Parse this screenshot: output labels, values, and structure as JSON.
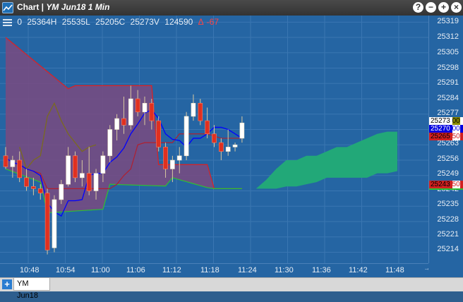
{
  "window": {
    "title": "Chart",
    "separator": " | ",
    "subtitle": "YM Jun18 1 Min",
    "buttons": [
      "?",
      "−",
      "+",
      "×"
    ]
  },
  "header": {
    "open": "0",
    "high": "25364H",
    "low": "25535L",
    "close": "25205C",
    "volume": "25273V",
    "extra": "124590",
    "change_marker": "Δ",
    "change": "-67"
  },
  "y_axis": {
    "labels": [
      "25319",
      "25312",
      "25305",
      "25298",
      "25291",
      "25284",
      "25277",
      "25270",
      "25263",
      "25256",
      "25249",
      "25242",
      "25235",
      "25228",
      "25221",
      "25214"
    ]
  },
  "x_axis": {
    "labels": [
      "10:48",
      "10:54",
      "11:00",
      "11:06",
      "11:12",
      "11:18",
      "11:24",
      "11:30",
      "11:36",
      "11:42",
      "11:48"
    ]
  },
  "price_tags": [
    {
      "text": "25273",
      "suffix": "00",
      "bg": "#ffffff",
      "fg": "#000000",
      "suffix_bg": "#8a8a00"
    },
    {
      "text": "25270",
      "suffix": "00",
      "bg": "#0000e0",
      "fg": "#ffffff",
      "suffix_bg": "#ffffff"
    },
    {
      "text": "25265",
      "suffix": "50",
      "bg": "#d02020",
      "fg": "#000000",
      "suffix_bg": "#ffffff"
    },
    {
      "text": "25243",
      "suffix": "50",
      "bg": "#d02020",
      "fg": "#000000",
      "suffix_bg": "#ffffff"
    }
  ],
  "bottom": {
    "add_button": "+",
    "tab_label": "YM Jun18"
  },
  "colors": {
    "plot_bg": "#2565a3",
    "cloud_bearish": "#7a4a80",
    "cloud_bullish": "#22a878",
    "tenkan": "#0000ff",
    "kijun": "#b02030",
    "chikou": "#7a6a20",
    "span_b": "#e02020",
    "span_a": "#30c030",
    "candle_up": "#ffffff",
    "candle_down": "#e03020"
  },
  "chart_data": {
    "type": "candlestick",
    "title": "YM Jun18 1 Min",
    "ylim": [
      25209,
      25322
    ],
    "candles": [
      {
        "o": 25258,
        "h": 25262,
        "l": 25252,
        "c": 25253
      },
      {
        "o": 25253,
        "h": 25258,
        "l": 25248,
        "c": 25256
      },
      {
        "o": 25256,
        "h": 25260,
        "l": 25246,
        "c": 25248
      },
      {
        "o": 25248,
        "h": 25252,
        "l": 25242,
        "c": 25244
      },
      {
        "o": 25244,
        "h": 25248,
        "l": 25240,
        "c": 25243
      },
      {
        "o": 25243,
        "h": 25245,
        "l": 25238,
        "c": 25241
      },
      {
        "o": 25241,
        "h": 25243,
        "l": 25213,
        "c": 25215
      },
      {
        "o": 25216,
        "h": 25240,
        "l": 25214,
        "c": 25238
      },
      {
        "o": 25238,
        "h": 25247,
        "l": 25236,
        "c": 25245
      },
      {
        "o": 25245,
        "h": 25262,
        "l": 25244,
        "c": 25258
      },
      {
        "o": 25258,
        "h": 25260,
        "l": 25246,
        "c": 25248
      },
      {
        "o": 25248,
        "h": 25256,
        "l": 25244,
        "c": 25250
      },
      {
        "o": 25250,
        "h": 25262,
        "l": 25240,
        "c": 25242
      },
      {
        "o": 25242,
        "h": 25252,
        "l": 25238,
        "c": 25250
      },
      {
        "o": 25250,
        "h": 25260,
        "l": 25246,
        "c": 25258
      },
      {
        "o": 25258,
        "h": 25272,
        "l": 25255,
        "c": 25270
      },
      {
        "o": 25270,
        "h": 25277,
        "l": 25265,
        "c": 25275
      },
      {
        "o": 25275,
        "h": 25285,
        "l": 25268,
        "c": 25272
      },
      {
        "o": 25272,
        "h": 25290,
        "l": 25270,
        "c": 25284
      },
      {
        "o": 25284,
        "h": 25288,
        "l": 25276,
        "c": 25278
      },
      {
        "o": 25278,
        "h": 25285,
        "l": 25272,
        "c": 25282
      },
      {
        "o": 25282,
        "h": 25284,
        "l": 25270,
        "c": 25274
      },
      {
        "o": 25274,
        "h": 25276,
        "l": 25260,
        "c": 25262
      },
      {
        "o": 25262,
        "h": 25264,
        "l": 25248,
        "c": 25252
      },
      {
        "o": 25252,
        "h": 25258,
        "l": 25246,
        "c": 25256
      },
      {
        "o": 25256,
        "h": 25262,
        "l": 25250,
        "c": 25258
      },
      {
        "o": 25258,
        "h": 25278,
        "l": 25256,
        "c": 25276
      },
      {
        "o": 25276,
        "h": 25286,
        "l": 25274,
        "c": 25282
      },
      {
        "o": 25282,
        "h": 25284,
        "l": 25272,
        "c": 25274
      },
      {
        "o": 25274,
        "h": 25280,
        "l": 25266,
        "c": 25268
      },
      {
        "o": 25268,
        "h": 25272,
        "l": 25262,
        "c": 25264
      },
      {
        "o": 25264,
        "h": 25266,
        "l": 25256,
        "c": 25260
      },
      {
        "o": 25260,
        "h": 25270,
        "l": 25258,
        "c": 25262
      },
      {
        "o": 25262,
        "h": 25264,
        "l": 25260,
        "c": 25263
      },
      {
        "o": 25266,
        "h": 25276,
        "l": 25264,
        "c": 25273
      }
    ],
    "cloud_future": [
      {
        "top": 25243,
        "bottom": 25243
      },
      {
        "top": 25247,
        "bottom": 25243
      },
      {
        "top": 25252,
        "bottom": 25243
      },
      {
        "top": 25256,
        "bottom": 25244
      },
      {
        "top": 25256,
        "bottom": 25244
      },
      {
        "top": 25258,
        "bottom": 25245
      },
      {
        "top": 25258,
        "bottom": 25246
      },
      {
        "top": 25260,
        "bottom": 25248
      },
      {
        "top": 25262,
        "bottom": 25248
      },
      {
        "top": 25262,
        "bottom": 25248
      },
      {
        "top": 25264,
        "bottom": 25248
      },
      {
        "top": 25266,
        "bottom": 25248
      },
      {
        "top": 25268,
        "bottom": 25250
      },
      {
        "top": 25269,
        "bottom": 25250
      },
      {
        "top": 25269,
        "bottom": 25251
      }
    ]
  }
}
